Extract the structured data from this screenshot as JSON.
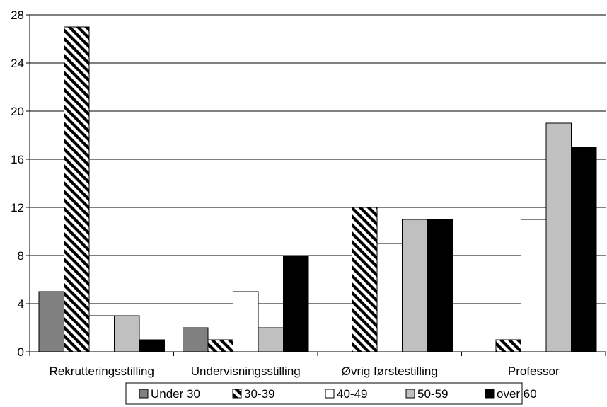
{
  "chart_data": {
    "type": "bar",
    "title": "",
    "xlabel": "",
    "ylabel": "",
    "categories": [
      "Rekrutteringsstilling",
      "Undervisningsstilling",
      "Øvrig førstestilling",
      "Professor"
    ],
    "series": [
      {
        "name": "Under 30",
        "values": [
          5,
          2,
          0,
          0
        ],
        "pattern": "solid",
        "color": "#808080"
      },
      {
        "name": "30-39",
        "values": [
          27,
          1,
          12,
          1
        ],
        "pattern": "diagonal-stripes",
        "color": "#000000"
      },
      {
        "name": "40-49",
        "values": [
          3,
          5,
          9,
          11
        ],
        "pattern": "solid",
        "color": "#ffffff"
      },
      {
        "name": "50-59",
        "values": [
          3,
          2,
          11,
          19
        ],
        "pattern": "solid",
        "color": "#c0c0c0"
      },
      {
        "name": "over 60",
        "values": [
          1,
          8,
          11,
          17
        ],
        "pattern": "solid",
        "color": "#000000"
      }
    ],
    "ylim": [
      0,
      28
    ],
    "yticks": [
      0,
      4,
      8,
      12,
      16,
      20,
      24,
      28
    ],
    "grid": true,
    "legend_position": "bottom"
  }
}
